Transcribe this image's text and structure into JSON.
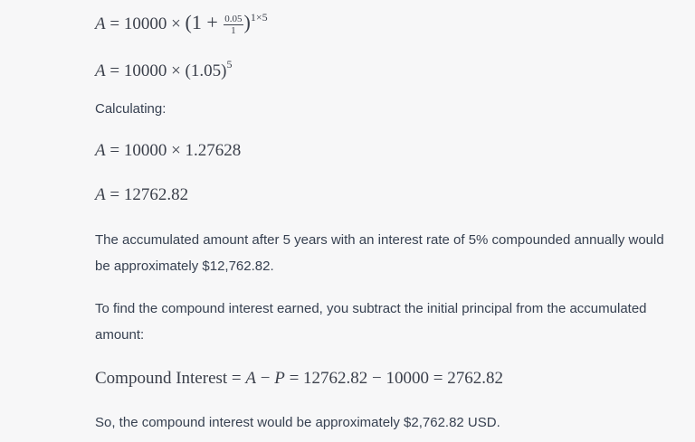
{
  "content": [
    {
      "parts": [
        "A",
        " = 10000 × ",
        "(1 + ",
        {
          "num": "0.05",
          "den": "1"
        },
        ")",
        {
          "sup": "1×5"
        }
      ]
    },
    {
      "parts": [
        "A",
        " = 10000 × (1.05)",
        {
          "sup": "5"
        }
      ]
    },
    {
      "text": "Calculating:"
    },
    {
      "parts": [
        "A",
        " = 10000 × 1.27628"
      ]
    },
    {
      "parts": [
        "A",
        " = 12762.82"
      ]
    },
    {
      "text": "The accumulated amount after 5 years with an interest rate of 5% compounded annually would be approximately $12,762.82."
    },
    {
      "text": "To find the compound interest earned, you subtract the initial principal from the accumulated amount:"
    },
    {
      "parts": [
        "Compound Interest = ",
        "A",
        " − ",
        "P",
        " = 12762.82 − 10000 = 2762.82"
      ]
    },
    {
      "text": "So, the compound interest would be approximately $2,762.82 USD."
    }
  ]
}
